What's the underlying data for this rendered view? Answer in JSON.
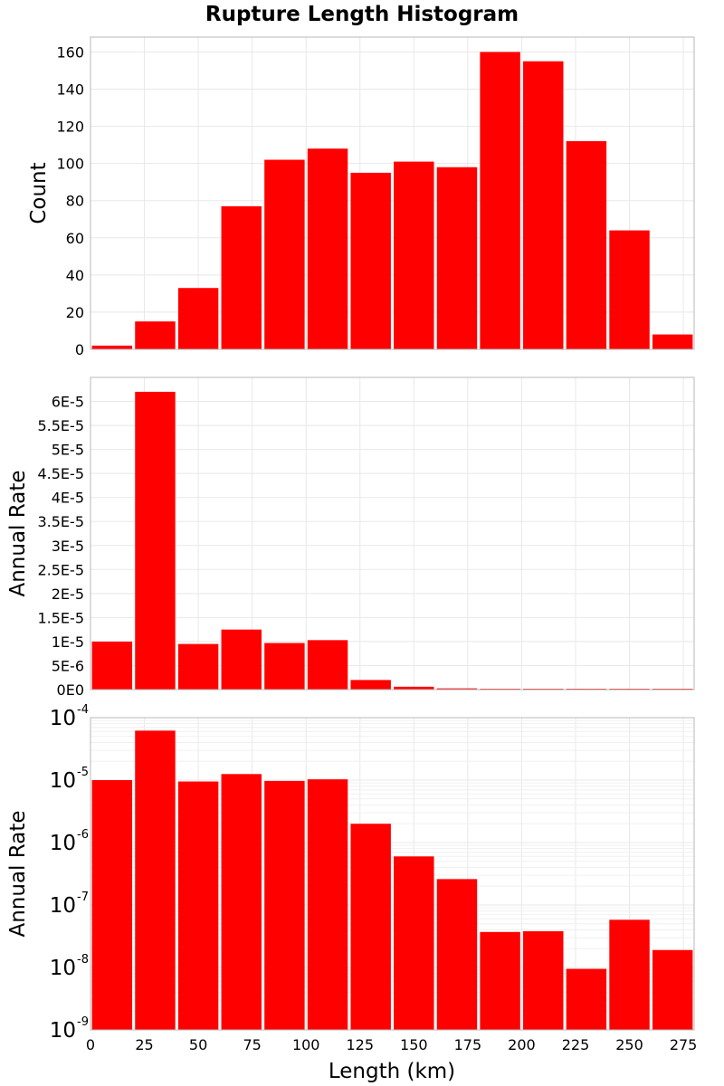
{
  "title": "Rupture Length Histogram",
  "xlabel": "Length (km)",
  "x_ticks": [
    "0",
    "25",
    "50",
    "75",
    "100",
    "125",
    "150",
    "175",
    "200",
    "225",
    "250",
    "275"
  ],
  "accent_color": "#ff0000",
  "chart_data": [
    {
      "type": "bar",
      "ylabel": "Count",
      "x": [
        10,
        30,
        50,
        70,
        90,
        110,
        130,
        150,
        170,
        190,
        210,
        230,
        250,
        270
      ],
      "values": [
        2,
        15,
        33,
        77,
        102,
        108,
        95,
        101,
        98,
        160,
        155,
        112,
        64,
        8
      ],
      "xlim": [
        0,
        280
      ],
      "ylim": [
        0,
        168
      ],
      "y_ticks": [
        "0",
        "20",
        "40",
        "60",
        "80",
        "100",
        "120",
        "140",
        "160"
      ],
      "grid": true
    },
    {
      "type": "bar",
      "ylabel": "Annual Rate",
      "x": [
        10,
        30,
        50,
        70,
        90,
        110,
        130,
        150,
        170,
        190,
        210,
        230,
        250,
        270
      ],
      "values": [
        1e-05,
        6.2e-05,
        9.5e-06,
        1.25e-05,
        9.7e-06,
        1.03e-05,
        2e-06,
        6e-07,
        2.6e-07,
        3.7e-08,
        3.8e-08,
        9.5e-09,
        5.8e-08,
        1.9e-08
      ],
      "xlim": [
        0,
        280
      ],
      "ylim": [
        0,
        6.5e-05
      ],
      "y_ticks": [
        "0E0",
        "5E-6",
        "1E-5",
        "1.5E-5",
        "2E-5",
        "2.5E-5",
        "3E-5",
        "3.5E-5",
        "4E-5",
        "4.5E-5",
        "5E-5",
        "5.5E-5",
        "6E-5"
      ],
      "grid": true
    },
    {
      "type": "bar",
      "ylabel": "Annual Rate",
      "y_scale": "log",
      "x": [
        10,
        30,
        50,
        70,
        90,
        110,
        130,
        150,
        170,
        190,
        210,
        230,
        250,
        270
      ],
      "values": [
        1e-05,
        6.2e-05,
        9.5e-06,
        1.25e-05,
        9.7e-06,
        1.03e-05,
        2e-06,
        6e-07,
        2.6e-07,
        3.7e-08,
        3.8e-08,
        9.5e-09,
        5.8e-08,
        1.9e-08
      ],
      "xlim": [
        0,
        280
      ],
      "ylim": [
        1e-09,
        0.0001
      ],
      "y_ticks": [
        {
          "base": "10",
          "exp": "-9"
        },
        {
          "base": "10",
          "exp": "-8"
        },
        {
          "base": "10",
          "exp": "-7"
        },
        {
          "base": "10",
          "exp": "-6"
        },
        {
          "base": "10",
          "exp": "-5"
        },
        {
          "base": "10",
          "exp": "-4"
        }
      ],
      "grid": true
    }
  ]
}
